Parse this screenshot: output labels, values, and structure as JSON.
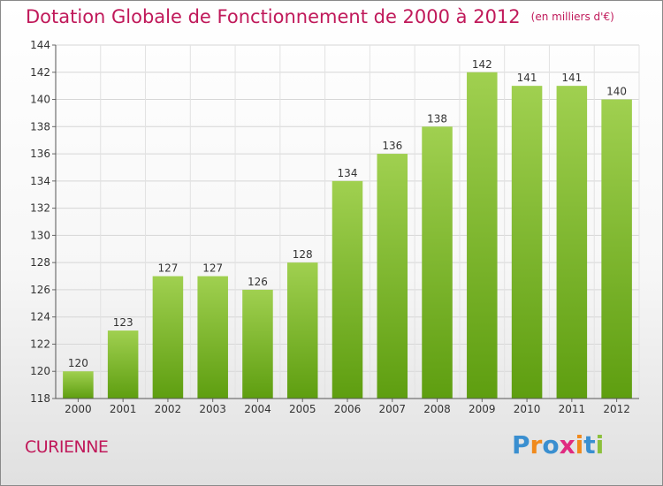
{
  "chart_data": {
    "type": "bar",
    "title": "Dotation Globale de Fonctionnement de 2000 à 2012",
    "subtitle": "(en milliers d'€)",
    "categories": [
      "2000",
      "2001",
      "2002",
      "2003",
      "2004",
      "2005",
      "2006",
      "2007",
      "2008",
      "2009",
      "2010",
      "2011",
      "2012"
    ],
    "values": [
      120,
      123,
      127,
      127,
      126,
      128,
      134,
      136,
      138,
      142,
      141,
      141,
      140
    ],
    "ylim": [
      118,
      144
    ],
    "yticks": [
      118,
      120,
      122,
      124,
      126,
      128,
      130,
      132,
      134,
      136,
      138,
      140,
      142,
      144
    ],
    "grid": true,
    "bar_color_top": "#a0d050",
    "bar_color_bottom": "#5e9e10"
  },
  "commune": "CURIENNE",
  "logo": {
    "text": "Proxiti",
    "letters": [
      "P",
      "r",
      "o",
      "x",
      "i",
      "t",
      "i"
    ],
    "colors": [
      "#3a8fd0",
      "#f08a1c",
      "#3a8fd0",
      "#e02a80",
      "#f08a1c",
      "#3a8fd0",
      "#8cc03c"
    ]
  }
}
